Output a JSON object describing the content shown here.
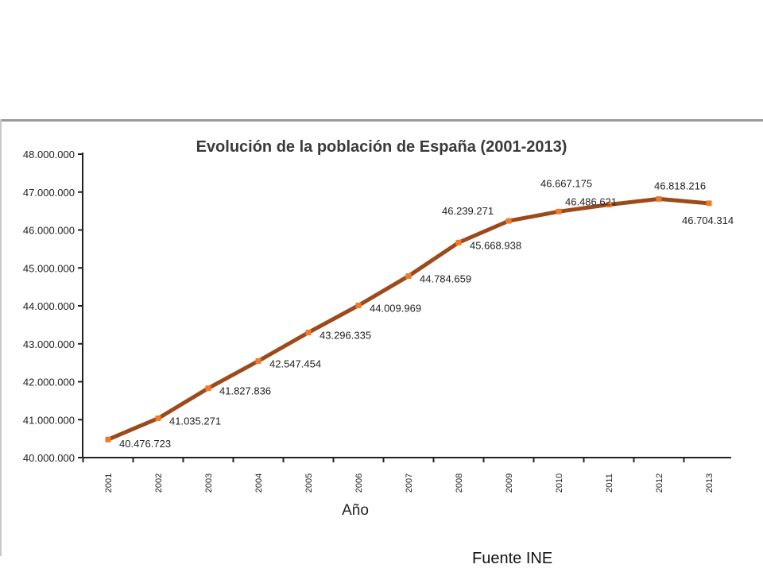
{
  "source_text": "Fuente INE",
  "colors": {
    "line": "#9c4a1c",
    "marker": "#f07a2a",
    "axis": "#222222"
  },
  "chart_data": {
    "type": "line",
    "title": "Evolución de la población de España (2001-2013)",
    "xlabel": "Año",
    "ylabel": "",
    "categories": [
      "2001",
      "2002",
      "2003",
      "2004",
      "2005",
      "2006",
      "2007",
      "2008",
      "2009",
      "2010",
      "2011",
      "2012",
      "2013"
    ],
    "series": [
      {
        "values": [
          40476723,
          41035271,
          41827836,
          42547454,
          43296335,
          44009969,
          44784659,
          45668938,
          46239271,
          46486621,
          46667175,
          46818216,
          46704314
        ],
        "data_labels": [
          "40.476.723",
          "41.035.271",
          "41.827.836",
          "42.547.454",
          "43.296.335",
          "44.009.969",
          "44.784.659",
          "45.668.938",
          "46.239.271",
          "46.486.621",
          "46.667.175",
          "46.818.216",
          "46.704.314"
        ]
      }
    ],
    "ylim": [
      40000000,
      48000000
    ],
    "yticks": [
      40000000,
      41000000,
      42000000,
      43000000,
      44000000,
      45000000,
      46000000,
      47000000,
      48000000
    ],
    "ytick_labels": [
      "40.000.000",
      "41.000.000",
      "42.000.000",
      "43.000.000",
      "44.000.000",
      "45.000.000",
      "46.000.000",
      "47.000.000",
      "48.000.000"
    ],
    "grid": false,
    "legend": "none"
  }
}
